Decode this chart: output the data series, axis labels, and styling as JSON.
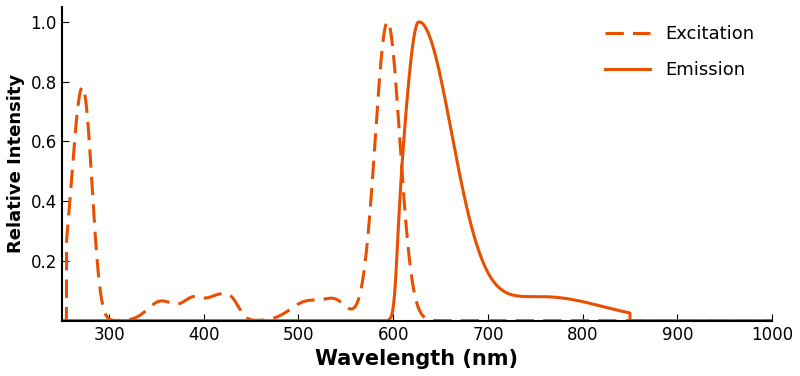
{
  "color": "#E85000",
  "xlabel": "Wavelength (nm)",
  "ylabel": "Relative Intensity",
  "xlim": [
    250,
    1000
  ],
  "ylim": [
    0,
    1.05
  ],
  "xticks": [
    300,
    400,
    500,
    600,
    700,
    800,
    900,
    1000
  ],
  "yticks": [
    0.2,
    0.4,
    0.6,
    0.8,
    1.0
  ],
  "legend_labels": [
    "Excitation",
    "Emission"
  ],
  "xlabel_fontsize": 15,
  "ylabel_fontsize": 13,
  "tick_fontsize": 12,
  "legend_fontsize": 13,
  "linewidth": 2.2,
  "background_color": "#ffffff"
}
